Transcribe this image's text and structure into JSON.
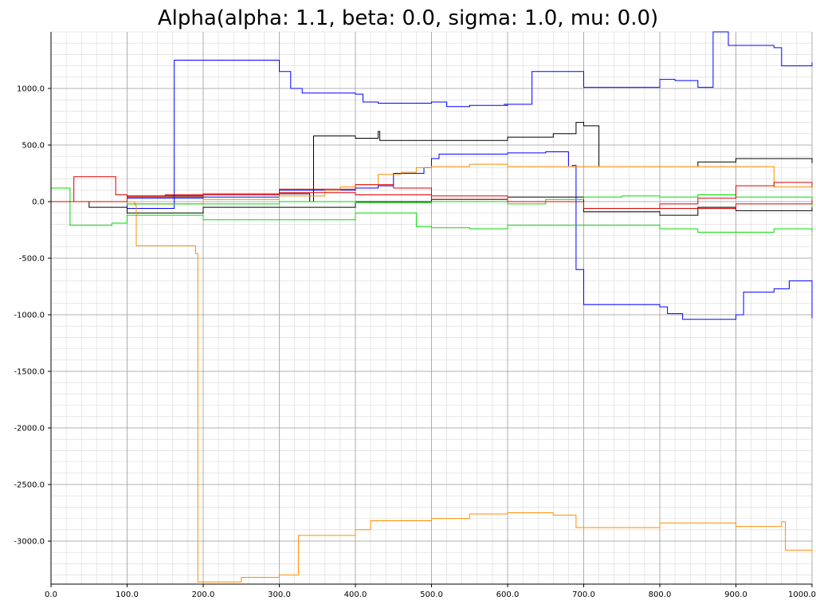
{
  "chart_data": {
    "type": "line",
    "title": "Alpha(alpha: 1.1, beta: 0.0, sigma: 1.0, mu: 0.0)",
    "xlabel": "",
    "ylabel": "",
    "xlim": [
      0,
      1000
    ],
    "ylim": [
      -3380,
      1500
    ],
    "x_ticks": [
      0,
      100,
      200,
      300,
      400,
      500,
      600,
      700,
      800,
      900,
      1000
    ],
    "x_tick_labels": [
      "0.0",
      "100.0",
      "200.0",
      "300.0",
      "400.0",
      "500.0",
      "600.0",
      "700.0",
      "800.0",
      "900.0",
      "1000.0"
    ],
    "y_ticks": [
      1000,
      500,
      0,
      -500,
      -1000,
      -1500,
      -2000,
      -2500,
      -3000
    ],
    "y_tick_labels": [
      "1000.0",
      "500.0",
      "0.0",
      "-500.0",
      "-1000.0",
      "-1500.0",
      "-2000.0",
      "-2500.0",
      "-3000.0"
    ],
    "grid": true,
    "legend": "none",
    "series": [
      {
        "color": "#0000ff",
        "x": [
          0,
          100,
          158,
          162,
          200,
          300,
          315,
          330,
          400,
          410,
          430,
          500,
          520,
          550,
          600,
          595,
          630,
          632,
          700,
          800,
          820,
          850,
          870,
          890,
          950,
          960,
          1000
        ],
        "y": [
          0,
          -60,
          -60,
          1250,
          1250,
          1150,
          1000,
          960,
          950,
          880,
          870,
          880,
          840,
          850,
          860,
          860,
          860,
          1150,
          1010,
          1080,
          1070,
          1010,
          1500,
          1380,
          1360,
          1200,
          1230
        ]
      },
      {
        "color": "#0000ff",
        "x": [
          0,
          100,
          200,
          300,
          400,
          430,
          450,
          470,
          490,
          500,
          510,
          600,
          650,
          680,
          685,
          690,
          700,
          800,
          810,
          830,
          900,
          910,
          950,
          970,
          1000
        ],
        "y": [
          0,
          30,
          40,
          100,
          120,
          140,
          250,
          250,
          300,
          380,
          420,
          430,
          440,
          310,
          320,
          -600,
          -910,
          -930,
          -990,
          -1040,
          -1000,
          -800,
          -770,
          -700,
          -1030
        ]
      },
      {
        "color": "#000000",
        "x": [
          0,
          100,
          200,
          300,
          340,
          345,
          400,
          430,
          432,
          500,
          600,
          660,
          690,
          700,
          720,
          800,
          850,
          900,
          1000
        ],
        "y": [
          0,
          50,
          60,
          70,
          0,
          580,
          560,
          620,
          540,
          540,
          570,
          600,
          700,
          670,
          310,
          310,
          350,
          380,
          340
        ]
      },
      {
        "color": "#000000",
        "x": [
          0,
          50,
          100,
          200,
          300,
          400,
          500,
          600,
          700,
          800,
          850,
          900,
          1000
        ],
        "y": [
          0,
          -50,
          -100,
          -50,
          -50,
          0,
          20,
          40,
          -90,
          -120,
          -50,
          -80,
          -50
        ]
      },
      {
        "color": "#ff8c00",
        "x": [
          0,
          100,
          110,
          112,
          190,
          193,
          250,
          300,
          320,
          325,
          400,
          420,
          500,
          550,
          600,
          660,
          690,
          700,
          800,
          900,
          960,
          965,
          1000
        ],
        "y": [
          0,
          0,
          -30,
          -390,
          -460,
          -3360,
          -3320,
          -3300,
          -3300,
          -2950,
          -2900,
          -2820,
          -2800,
          -2760,
          -2750,
          -2770,
          -2880,
          -2880,
          -2840,
          -2870,
          -2830,
          -3080,
          -3100
        ]
      },
      {
        "color": "#ff8c00",
        "x": [
          0,
          100,
          200,
          300,
          360,
          380,
          400,
          430,
          460,
          480,
          500,
          550,
          600,
          700,
          800,
          900,
          950,
          1000
        ],
        "y": [
          0,
          -20,
          20,
          50,
          100,
          130,
          150,
          240,
          260,
          300,
          310,
          330,
          310,
          310,
          310,
          310,
          130,
          110
        ]
      },
      {
        "color": "#00dd00",
        "x": [
          0,
          20,
          25,
          80,
          100,
          200,
          300,
          400,
          470,
          480,
          500,
          550,
          600,
          700,
          800,
          850,
          900,
          950,
          1000
        ],
        "y": [
          120,
          120,
          -210,
          -190,
          -120,
          -160,
          -160,
          -100,
          -100,
          -220,
          -230,
          -240,
          -210,
          -210,
          -240,
          -270,
          -270,
          -240,
          -270
        ]
      },
      {
        "color": "#00dd00",
        "x": [
          0,
          100,
          200,
          300,
          400,
          500,
          600,
          650,
          700,
          750,
          800,
          850,
          900,
          1000
        ],
        "y": [
          0,
          -20,
          -20,
          0,
          -10,
          0,
          -20,
          20,
          40,
          50,
          40,
          60,
          40,
          -50
        ]
      },
      {
        "color": "#dd0000",
        "x": [
          0,
          20,
          30,
          40,
          80,
          85,
          100,
          150,
          200,
          300,
          400,
          450,
          500,
          600,
          700,
          800,
          850,
          900,
          950,
          1000
        ],
        "y": [
          0,
          0,
          220,
          220,
          220,
          60,
          50,
          60,
          70,
          110,
          150,
          120,
          50,
          0,
          -60,
          -20,
          30,
          140,
          170,
          130
        ]
      },
      {
        "color": "#dd0000",
        "x": [
          0,
          100,
          200,
          300,
          400,
          500,
          600,
          700,
          800,
          900,
          1000
        ],
        "y": [
          0,
          40,
          60,
          80,
          60,
          20,
          0,
          -60,
          -60,
          -20,
          20
        ]
      }
    ]
  }
}
